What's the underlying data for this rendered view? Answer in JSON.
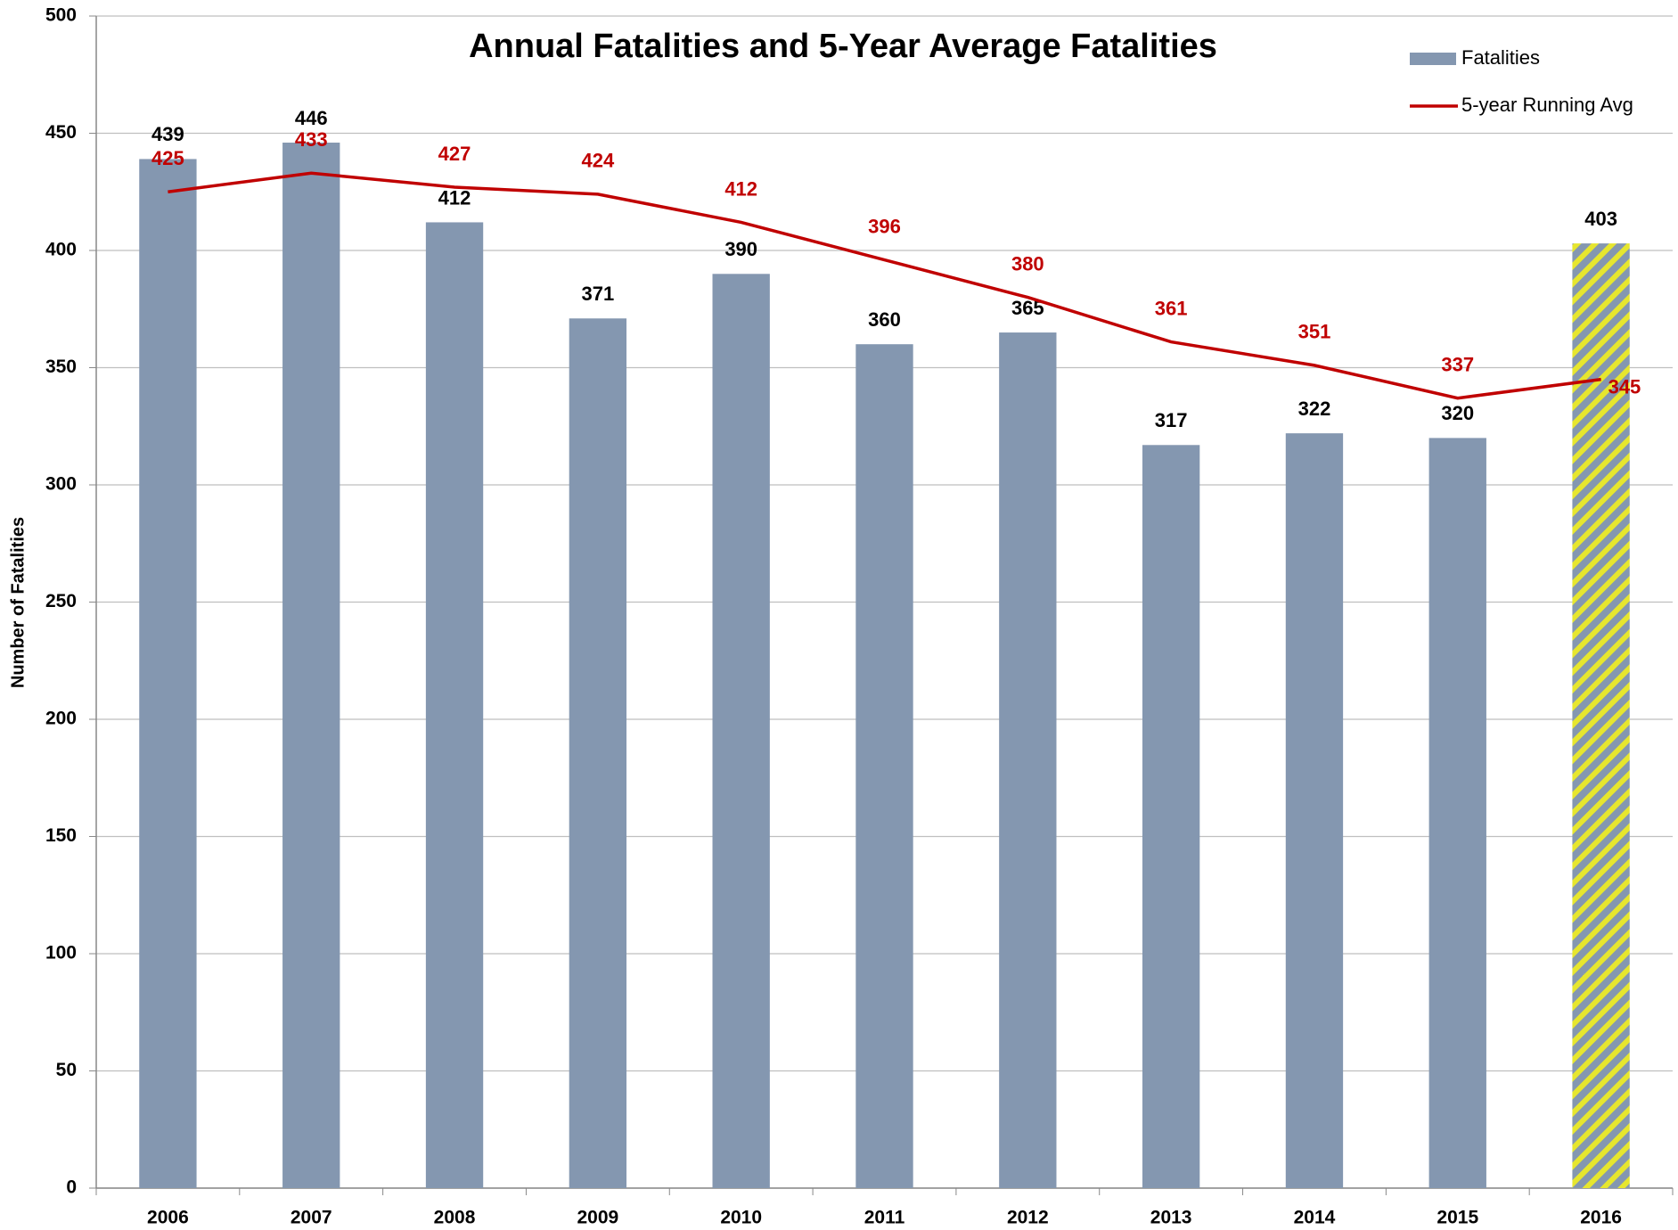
{
  "chart_data": {
    "type": "bar",
    "title": "Annual Fatalities and 5-Year Average Fatalities",
    "y_label": "Number of Fatalities",
    "categories": [
      "2006",
      "2007",
      "2008",
      "2009",
      "2010",
      "2011",
      "2012",
      "2013",
      "2014",
      "2015",
      "2016"
    ],
    "series": [
      {
        "name": "Fatalities",
        "type": "bar",
        "color": "#8497b0",
        "values": [
          439,
          446,
          412,
          371,
          390,
          360,
          365,
          317,
          322,
          320,
          403
        ],
        "hatch": {
          "index": 10,
          "color": "#e6e62e"
        }
      },
      {
        "name": "5-year Running Avg",
        "type": "line",
        "color": "#c00000",
        "values": [
          425,
          433,
          427,
          424,
          412,
          396,
          380,
          361,
          351,
          337,
          345
        ]
      }
    ],
    "ylim": [
      0,
      500
    ],
    "yticks": [
      0,
      50,
      100,
      150,
      200,
      250,
      300,
      350,
      400,
      450,
      500
    ],
    "grid": true,
    "legend": "top-right"
  }
}
